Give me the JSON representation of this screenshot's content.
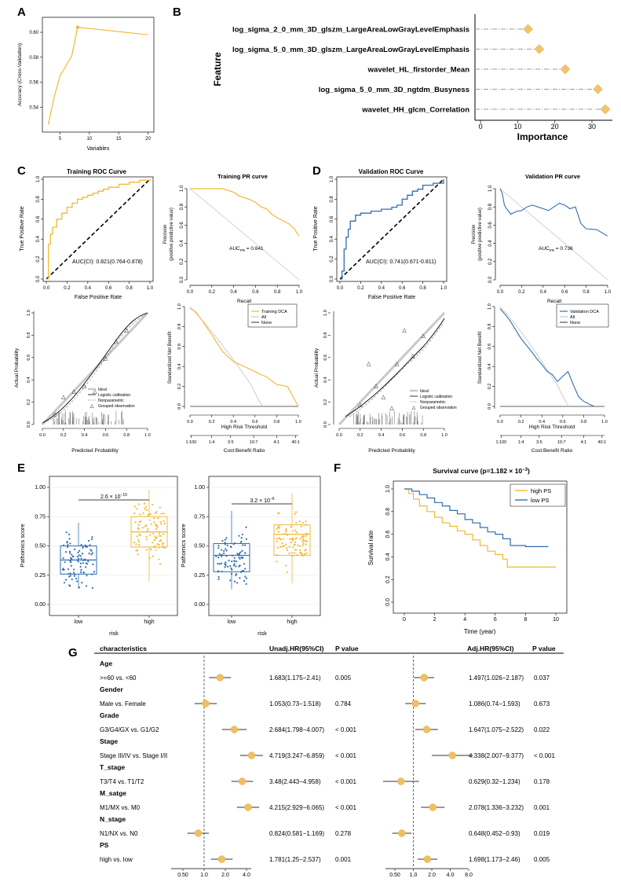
{
  "panel_labels": {
    "A": "A",
    "B": "B",
    "C": "C",
    "D": "D",
    "E": "E",
    "F": "F",
    "G": "G"
  },
  "colors": {
    "yellow": "#f3b830",
    "blue": "#2f6fb0",
    "diamond": "#f2c46d",
    "forest_point": "#f0c060",
    "gray": "#c8c8c8"
  },
  "chart_data": [
    {
      "id": "A",
      "type": "line",
      "xlabel": "Variables",
      "ylabel": "Accuracy (Cross-Validation)",
      "x": [
        3,
        4,
        5,
        7,
        8,
        20
      ],
      "y": [
        0.526,
        0.548,
        0.565,
        0.581,
        0.604,
        0.598
      ],
      "highlight": {
        "x": 8,
        "y": 0.604
      },
      "xticks": [
        "5",
        "10",
        "15",
        "20"
      ],
      "xtick_values": [
        5,
        10,
        15,
        20
      ],
      "yticks": [
        "0.54",
        "0.56",
        "0.58",
        "0.60"
      ],
      "ytick_values": [
        0.54,
        0.56,
        0.58,
        0.6
      ],
      "xlim": [
        2,
        21
      ],
      "ylim": [
        0.52,
        0.612
      ]
    },
    {
      "id": "B",
      "type": "scatter",
      "xlabel": "Importance",
      "ylabel": "Feature",
      "categories": [
        "log_sigma_2_0_mm_3D_glszm_LargeAreaLowGrayLevelEmphasis",
        "log_sigma_5_0_mm_3D_glszm_LargeAreaLowGrayLevelEmphasis",
        "wavelet_HL_firstorder_Mean",
        "log_sigma_5_0_mm_3D_ngtdm_Busyness",
        "wavelet_HH_glcm_Correlation"
      ],
      "values": [
        12.8,
        15.8,
        22.8,
        31.6,
        33.6
      ],
      "xticks": [
        "0",
        "10",
        "20",
        "30"
      ],
      "xtick_values": [
        0,
        10,
        20,
        30
      ],
      "xlim": [
        -1.5,
        35.5
      ]
    },
    {
      "id": "C-roc",
      "type": "line",
      "title": "Training ROC Curve",
      "xlabel": "False Positive Rate",
      "ylabel": "True Positive Rate",
      "annotation": "AUC(CI): 0.821(0.764-0.878)",
      "x": [
        0,
        0.02,
        0.02,
        0.04,
        0.06,
        0.1,
        0.15,
        0.2,
        0.25,
        0.3,
        0.35,
        0.4,
        0.45,
        0.5,
        0.55,
        0.6,
        0.7,
        0.8,
        0.9,
        1.0
      ],
      "y": [
        0,
        0.15,
        0.35,
        0.45,
        0.52,
        0.6,
        0.66,
        0.72,
        0.76,
        0.8,
        0.82,
        0.84,
        0.86,
        0.88,
        0.9,
        0.92,
        0.95,
        0.97,
        0.99,
        1.0
      ],
      "ticks": [
        "0.0",
        "0.2",
        "0.4",
        "0.6",
        "0.8",
        "1.0"
      ],
      "tick_values": [
        0,
        0.2,
        0.4,
        0.6,
        0.8,
        1.0
      ]
    },
    {
      "id": "C-pr",
      "type": "line",
      "title": "Training PR curve",
      "xlabel": "Recall",
      "ylabel": "Precision",
      "ylabel2": "(positive predictive value)",
      "annotation": "AUCPR = 0.841",
      "annotation_main": "AUC",
      "annotation_sub": "PR",
      "annotation_rest": " = 0.841",
      "x": [
        0,
        0.05,
        0.1,
        0.2,
        0.3,
        0.4,
        0.45,
        0.5,
        0.55,
        0.6,
        0.65,
        0.7,
        0.75,
        0.8,
        0.85,
        0.9,
        0.95,
        1.0
      ],
      "y": [
        1.0,
        1.0,
        1.0,
        1.0,
        1.0,
        0.96,
        0.92,
        0.9,
        0.88,
        0.85,
        0.8,
        0.78,
        0.72,
        0.68,
        0.65,
        0.62,
        0.57,
        0.48
      ],
      "ticks": [
        "0.0",
        "0.2",
        "0.4",
        "0.6",
        "0.8",
        "1.0"
      ],
      "tick_values": [
        0,
        0.2,
        0.4,
        0.6,
        0.8,
        1.0
      ]
    },
    {
      "id": "D-roc",
      "type": "line",
      "title": "Validation ROC Curve",
      "xlabel": "False Positive Rate",
      "ylabel": "True Positive Rate",
      "annotation": "AUC(CI): 0.741(0.671-0.811)",
      "x": [
        0,
        0.02,
        0.04,
        0.06,
        0.08,
        0.1,
        0.15,
        0.2,
        0.3,
        0.4,
        0.5,
        0.55,
        0.6,
        0.65,
        0.7,
        0.75,
        0.8,
        0.9,
        1.0
      ],
      "y": [
        0,
        0.08,
        0.3,
        0.42,
        0.5,
        0.58,
        0.64,
        0.66,
        0.68,
        0.7,
        0.72,
        0.74,
        0.8,
        0.84,
        0.88,
        0.9,
        0.94,
        0.96,
        1.0
      ],
      "ticks": [
        "0.0",
        "0.2",
        "0.4",
        "0.6",
        "0.8",
        "1.0"
      ],
      "tick_values": [
        0,
        0.2,
        0.4,
        0.6,
        0.8,
        1.0
      ]
    },
    {
      "id": "D-pr",
      "type": "line",
      "title": "Validation PR curve",
      "xlabel": "Recall",
      "ylabel": "Precision",
      "ylabel2": "(positive predictive value)",
      "annotation": "AUCPR = 0.736",
      "annotation_main": "AUC",
      "annotation_sub": "PR",
      "annotation_rest": " = 0.736",
      "x": [
        0,
        0.02,
        0.04,
        0.06,
        0.1,
        0.15,
        0.2,
        0.25,
        0.3,
        0.35,
        0.4,
        0.45,
        0.5,
        0.55,
        0.6,
        0.65,
        0.7,
        0.75,
        0.8,
        0.9,
        1.0
      ],
      "y": [
        1.0,
        0.95,
        0.82,
        0.78,
        0.72,
        0.75,
        0.76,
        0.8,
        0.82,
        0.8,
        0.78,
        0.76,
        0.8,
        0.84,
        0.82,
        0.78,
        0.8,
        0.62,
        0.56,
        0.55,
        0.48
      ],
      "ticks": [
        "0.0",
        "0.2",
        "0.4",
        "0.6",
        "0.8",
        "1.0"
      ],
      "tick_values": [
        0,
        0.2,
        0.4,
        0.6,
        0.8,
        1.0
      ]
    },
    {
      "id": "C-cal",
      "type": "line",
      "xlabel": "Predicted Probability",
      "ylabel": "Actual Probability",
      "legend": [
        "Ideal",
        "Logistic calibration",
        "Nonparametric",
        "Grouped observation"
      ],
      "groups": {
        "x": [
          0.12,
          0.2,
          0.3,
          0.4,
          0.5,
          0.6,
          0.7,
          0.8
        ],
        "y": [
          0.1,
          0.25,
          0.3,
          0.35,
          0.3,
          0.6,
          0.75,
          0.85
        ]
      },
      "ticks": [
        "0.0",
        "0.2",
        "0.4",
        "0.6",
        "0.8",
        "1.0"
      ],
      "tick_values": [
        0,
        0.2,
        0.4,
        0.6,
        0.8,
        1.0
      ]
    },
    {
      "id": "C-dca",
      "type": "line",
      "xlabel": "High Risk Threshold",
      "x2label": "Cost:Benefit Ratio",
      "ylabel": "Standardized Net Benefit",
      "legend": [
        "Training DCA",
        "All",
        "None"
      ],
      "x": [
        0,
        0.05,
        0.1,
        0.2,
        0.3,
        0.4,
        0.5,
        0.6,
        0.65,
        0.7,
        0.8,
        0.9,
        1.0
      ],
      "y": [
        0.98,
        0.95,
        0.88,
        0.72,
        0.55,
        0.45,
        0.4,
        0.35,
        0.32,
        0.3,
        0.22,
        0.2,
        0.0
      ],
      "xticks": [
        "0.0",
        "0.2",
        "0.4",
        "0.6",
        "0.8",
        "1.0"
      ],
      "xtick_values": [
        0,
        0.2,
        0.4,
        0.6,
        0.8,
        1.0
      ],
      "cb_ticks": [
        "1:100",
        "1:4",
        "3:5",
        "10:7",
        "4:1",
        "40:1"
      ],
      "cb_values": [
        0.01,
        0.2,
        0.375,
        0.588,
        0.8,
        0.976
      ],
      "yticks": [
        "0.0",
        "0.2",
        "0.4",
        "0.6",
        "0.8",
        "1.0"
      ],
      "ytick_values": [
        0,
        0.2,
        0.4,
        0.6,
        0.8,
        1.0
      ]
    },
    {
      "id": "D-cal",
      "type": "line",
      "xlabel": "Predicted Probability",
      "ylabel": "Actual Probability",
      "legend": [
        "Ideal",
        "Logistic calibration",
        "Nonparametric",
        "Grouped observation"
      ],
      "groups": {
        "x": [
          0.2,
          0.28,
          0.35,
          0.42,
          0.5,
          0.55,
          0.62,
          0.7,
          0.8
        ],
        "y": [
          0.18,
          0.55,
          0.35,
          0.25,
          0.15,
          0.55,
          0.85,
          0.62,
          0.8
        ]
      },
      "ticks": [
        "0.0",
        "0.2",
        "0.4",
        "0.6",
        "0.8",
        "1.0"
      ],
      "tick_values": [
        0,
        0.2,
        0.4,
        0.6,
        0.8,
        1.0
      ]
    },
    {
      "id": "D-dca",
      "type": "line",
      "xlabel": "High Risk Threshold",
      "x2label": "Cost:Benefit Ratio",
      "ylabel": "Standardized Net Benefit",
      "legend": [
        "Validation DCA",
        "All",
        "None"
      ],
      "x": [
        0,
        0.05,
        0.1,
        0.2,
        0.3,
        0.35,
        0.4,
        0.45,
        0.5,
        0.55,
        0.6,
        0.65,
        0.7,
        0.75,
        0.8,
        0.9
      ],
      "y": [
        0.98,
        0.92,
        0.85,
        0.68,
        0.55,
        0.48,
        0.42,
        0.35,
        0.32,
        0.25,
        0.3,
        0.35,
        0.22,
        0.1,
        0.05,
        0.0
      ],
      "xticks": [
        "0.0",
        "0.2",
        "0.4",
        "0.6",
        "0.8",
        "1.0"
      ],
      "xtick_values": [
        0,
        0.2,
        0.4,
        0.6,
        0.8,
        1.0
      ],
      "cb_ticks": [
        "1:100",
        "1:4",
        "3:5",
        "10:7",
        "4:1",
        "40:1"
      ],
      "cb_values": [
        0.01,
        0.2,
        0.375,
        0.588,
        0.8,
        0.976
      ],
      "yticks": [
        "0.0",
        "0.2",
        "0.4",
        "0.6",
        "0.8",
        "1.0"
      ],
      "ytick_values": [
        0,
        0.2,
        0.4,
        0.6,
        0.8,
        1.0
      ]
    },
    {
      "id": "E1",
      "type": "box",
      "xlabel": "risk",
      "ylabel": "Pathomics score",
      "categories": [
        "low",
        "high"
      ],
      "boxes": [
        {
          "name": "low",
          "q1": 0.26,
          "median": 0.38,
          "q3": 0.5,
          "min": 0.13,
          "max": 0.7
        },
        {
          "name": "high",
          "q1": 0.49,
          "median": 0.62,
          "q3": 0.75,
          "min": 0.2,
          "max": 0.98
        }
      ],
      "pvalue_base": "2.6 × 10",
      "pvalue_exp": "−15",
      "yticks": [
        "0.00",
        "0.25",
        "0.50",
        "0.75",
        "1.00"
      ],
      "ytick_values": [
        0,
        0.25,
        0.5,
        0.75,
        1.0
      ]
    },
    {
      "id": "E2",
      "type": "box",
      "xlabel": "risk",
      "ylabel": "Pathomics score",
      "categories": [
        "low",
        "high"
      ],
      "boxes": [
        {
          "name": "low",
          "q1": 0.28,
          "median": 0.42,
          "q3": 0.52,
          "min": 0.13,
          "max": 0.8
        },
        {
          "name": "high",
          "q1": 0.42,
          "median": 0.6,
          "q3": 0.68,
          "min": 0.18,
          "max": 0.95
        }
      ],
      "pvalue_base": "3.2 × 10",
      "pvalue_exp": "−6",
      "yticks": [
        "0.00",
        "0.25",
        "0.50",
        "0.75",
        "1.00"
      ],
      "ytick_values": [
        0,
        0.25,
        0.5,
        0.75,
        1.0
      ]
    },
    {
      "id": "F",
      "type": "line",
      "title_base": "Survival curve (p=1.182 × 10",
      "title_exp": "−3",
      "title_end": ")",
      "xlabel": "Time (year)",
      "ylabel": "Survival rate",
      "series": [
        {
          "name": "high PS",
          "x": [
            0,
            0.3,
            0.6,
            1.0,
            1.5,
            2.0,
            2.5,
            3.0,
            3.5,
            4.0,
            4.5,
            5.0,
            5.5,
            6.0,
            6.5,
            6.8,
            7.0,
            10.0
          ],
          "y": [
            1.0,
            0.96,
            0.91,
            0.85,
            0.8,
            0.75,
            0.7,
            0.67,
            0.63,
            0.6,
            0.55,
            0.5,
            0.45,
            0.42,
            0.38,
            0.31,
            0.31,
            0.31
          ]
        },
        {
          "name": "low PS",
          "x": [
            0,
            0.5,
            1.0,
            1.5,
            2.0,
            2.5,
            3.0,
            3.5,
            4.0,
            4.5,
            5.0,
            5.5,
            6.0,
            6.5,
            7.0,
            7.5,
            8.0,
            8.5,
            9.0,
            9.5
          ],
          "y": [
            1.0,
            0.98,
            0.95,
            0.92,
            0.88,
            0.85,
            0.81,
            0.78,
            0.73,
            0.7,
            0.66,
            0.62,
            0.6,
            0.56,
            0.5,
            0.5,
            0.49,
            0.49,
            0.49,
            0.49
          ]
        }
      ],
      "xticks": [
        "0",
        "2",
        "4",
        "6",
        "8",
        "10"
      ],
      "xtick_values": [
        0,
        2,
        4,
        6,
        8,
        10
      ],
      "yticks": [
        "0.0",
        "0.2",
        "0.4",
        "0.6",
        "0.8",
        "1.0"
      ],
      "ytick_values": [
        0,
        0.2,
        0.4,
        0.6,
        0.8,
        1.0
      ]
    },
    {
      "id": "G",
      "type": "table",
      "header": {
        "characteristics": "characteristics",
        "unadj": "Unadj.HR(95%CI)",
        "p": "P value",
        "adj": "Adj.HR(95%CI)",
        "p2": "P value"
      },
      "groups": [
        "Age",
        "Gender",
        "Grade",
        "Stage",
        "T_stage",
        "M_satge",
        "N_stage",
        "PS"
      ],
      "rows": [
        {
          "label": ">=60 vs. <60",
          "uhr": 1.683,
          "ulo": 1.175,
          "uhi": 2.41,
          "utext": "1.683(1.175−2.41)",
          "up": "0.005",
          "ahr": 1.497,
          "alo": 1.026,
          "ahi": 2.187,
          "atext": "1.497(1.026−2.187)",
          "ap": "0.037"
        },
        {
          "label": "Male vs. Female",
          "uhr": 1.053,
          "ulo": 0.73,
          "uhi": 1.518,
          "utext": "1.053(0.73−1.518)",
          "up": "0.784",
          "ahr": 1.086,
          "alo": 0.74,
          "ahi": 1.593,
          "atext": "1.086(0.74−1.593)",
          "ap": "0.673"
        },
        {
          "label": "G3/G4/GX vs. G1/G2",
          "uhr": 2.684,
          "ulo": 1.798,
          "uhi": 4.007,
          "utext": "2.684(1.798−4.007)",
          "up": "< 0.001",
          "ahr": 1.647,
          "alo": 1.075,
          "ahi": 2.522,
          "atext": "1.647(1.075−2.522)",
          "ap": "0.022"
        },
        {
          "label": "Stage III/IV vs. Stage I/II",
          "uhr": 4.719,
          "ulo": 3.247,
          "uhi": 6.859,
          "utext": "4.719(3.247−6.859)",
          "up": "< 0.001",
          "ahr": 4.338,
          "alo": 2.007,
          "ahi": 9.377,
          "atext": "4.338(2.007−9.377)",
          "ap": "< 0.001"
        },
        {
          "label": "T3/T4 vs. T1/T2",
          "uhr": 3.48,
          "ulo": 2.443,
          "uhi": 4.958,
          "utext": "3.48(2.443−4.958)",
          "up": "< 0.001",
          "ahr": 0.629,
          "alo": 0.32,
          "ahi": 1.234,
          "atext": "0.629(0.32−1.234)",
          "ap": "0.178"
        },
        {
          "label": "M1/MX vs. M0",
          "uhr": 4.215,
          "ulo": 2.929,
          "uhi": 6.065,
          "utext": "4.215(2.929−6.065)",
          "up": "< 0.001",
          "ahr": 2.078,
          "alo": 1.336,
          "ahi": 3.232,
          "atext": "2.078(1.336−3.232)",
          "ap": "0.001"
        },
        {
          "label": "N1/NX vs. N0",
          "uhr": 0.824,
          "ulo": 0.581,
          "uhi": 1.169,
          "utext": "0.824(0.581−1.169)",
          "up": "0.278",
          "ahr": 0.648,
          "alo": 0.452,
          "ahi": 0.93,
          "atext": "0.648(0.452−0.93)",
          "ap": "0.019"
        },
        {
          "label": "high vs. low",
          "uhr": 1.781,
          "ulo": 1.25,
          "uhi": 2.537,
          "utext": "1.781(1.25−2.537)",
          "up": "0.001",
          "ahr": 1.698,
          "alo": 1.173,
          "ahi": 2.46,
          "atext": "1.698(1.173−2.46)",
          "ap": "0.005"
        }
      ],
      "unadj_ticks": [
        "0.50",
        "1.0",
        "2.0",
        "4.0"
      ],
      "unadj_tick_values": [
        0.5,
        1,
        2,
        4
      ],
      "adj_ticks": [
        "0.50",
        "1.0",
        "2.0",
        "4.0",
        "8.0"
      ],
      "adj_tick_values": [
        0.5,
        1,
        2,
        4,
        8
      ]
    }
  ]
}
